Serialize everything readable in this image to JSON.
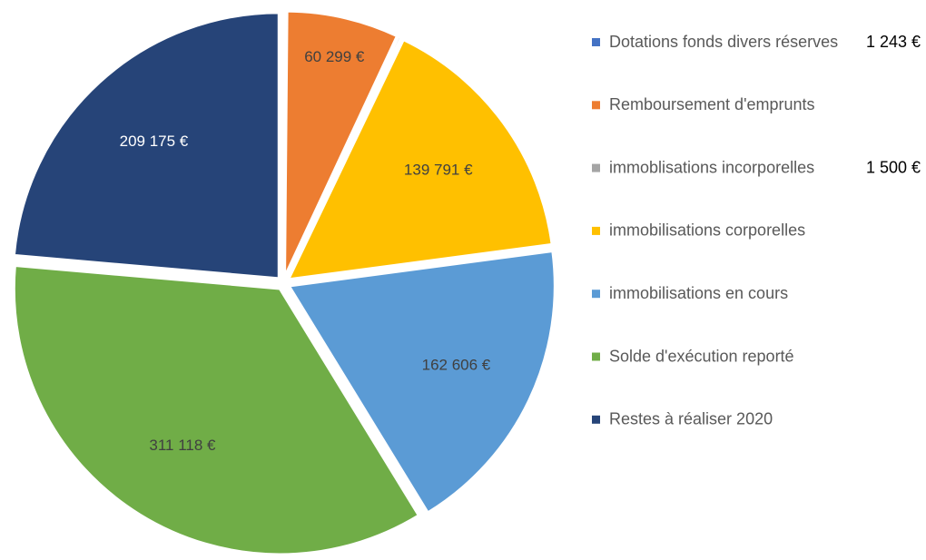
{
  "chart_data": {
    "type": "pie",
    "categories": [
      "Dotations fonds divers réserves",
      "Remboursement d'emprunts",
      "immoblisations incorporelles",
      "immobilisations corporelles",
      "immobilisations en cours",
      "Solde d'exécution reporté",
      "Restes à réaliser 2020"
    ],
    "values": [
      1243,
      60299,
      1500,
      139791,
      162606,
      311118,
      209175
    ],
    "value_labels": [
      "1 243 €",
      "60 299 €",
      "1 500 €",
      "139 791 €",
      "162 606 €",
      "311 118 €",
      "209 175 €"
    ],
    "colors": [
      "#4472c4",
      "#ed7d31",
      "#a5a5a5",
      "#ffc000",
      "#5b9bd5",
      "#70ad47",
      "#264478"
    ],
    "legend": "right"
  }
}
